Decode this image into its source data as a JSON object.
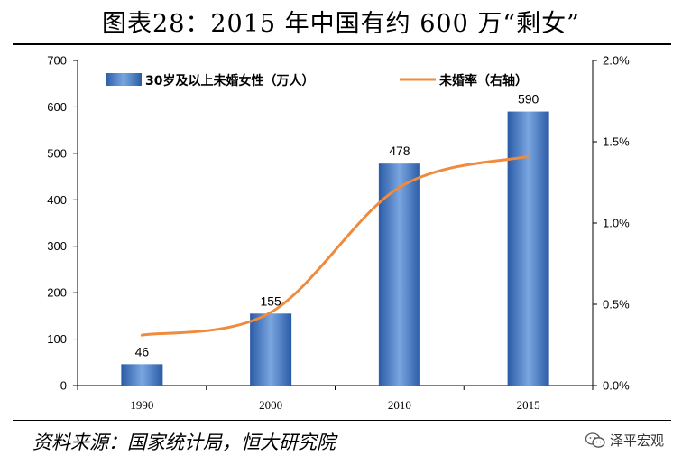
{
  "title": "图表28：2015 年中国有约 600 万“剩女”",
  "source": "资料来源：国家统计局，恒大研究院",
  "watermark": {
    "text": "泽平宏观",
    "icon": "wechat-icon"
  },
  "colors": {
    "bar": "#3a6fb8",
    "line": "#f08a3c",
    "axis": "#000000"
  },
  "chart_data": {
    "type": "bar+line",
    "title": "图表28：2015 年中国有约 600 万“剩女”",
    "categories": [
      "1990",
      "2000",
      "2010",
      "2015"
    ],
    "series": [
      {
        "name": "30岁及以上未婚女性（万人）",
        "type": "bar",
        "axis": "left",
        "values": [
          46,
          155,
          478,
          590
        ],
        "labels": [
          "46",
          "155",
          "478",
          "590"
        ]
      },
      {
        "name": "未婚率（右轴）",
        "type": "line",
        "axis": "right",
        "values": [
          0.31,
          0.45,
          1.22,
          1.41
        ]
      }
    ],
    "ylim_left": [
      0,
      700
    ],
    "yticks_left": [
      0,
      100,
      200,
      300,
      400,
      500,
      600,
      700
    ],
    "ytick_labels_left": [
      "0",
      "100",
      "200",
      "300",
      "400",
      "500",
      "600",
      "700"
    ],
    "ylim_right": [
      0,
      2.0
    ],
    "yticks_right": [
      0,
      0.5,
      1.0,
      1.5,
      2.0
    ],
    "ytick_labels_right": [
      "0.0%",
      "0.5%",
      "1.0%",
      "1.5%",
      "2.0%"
    ],
    "legend_position": "top",
    "grid": false
  }
}
